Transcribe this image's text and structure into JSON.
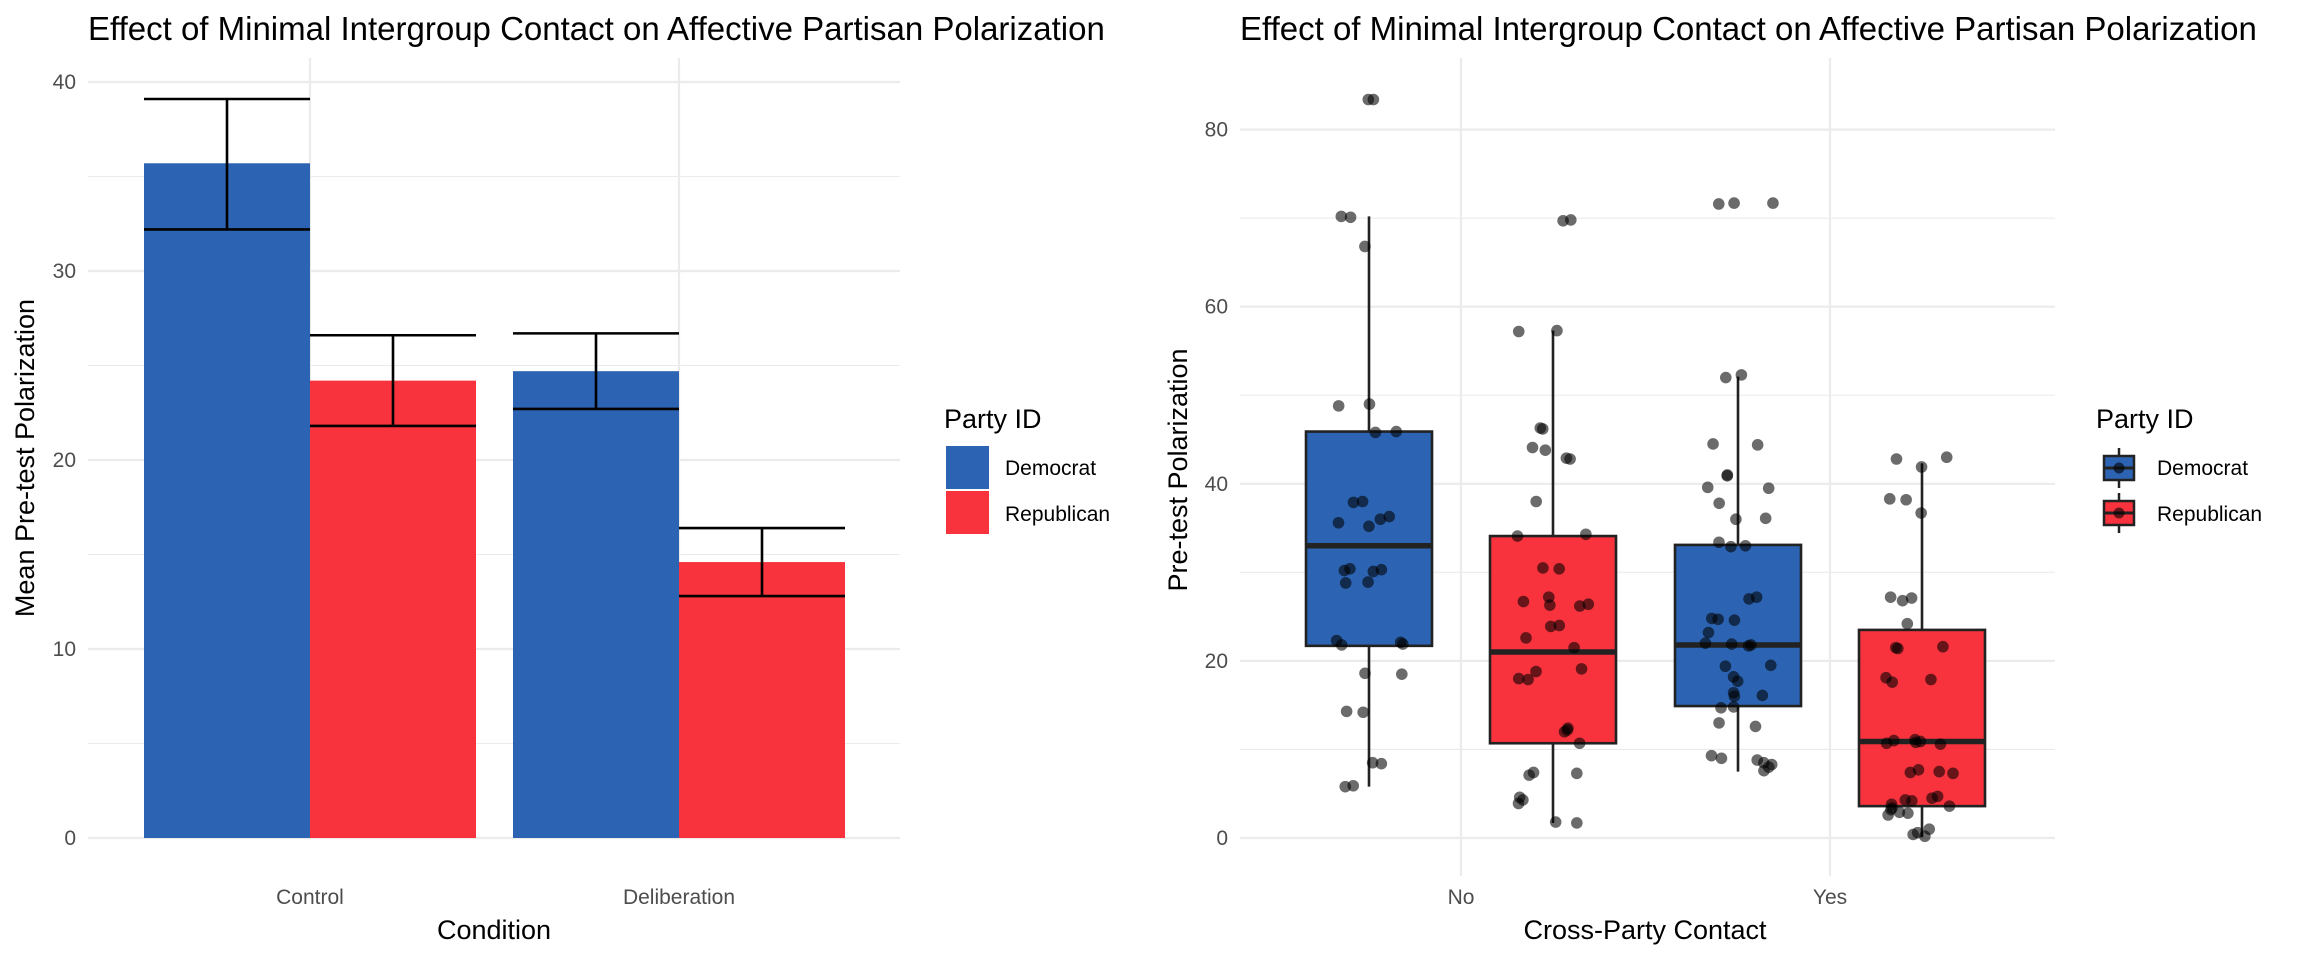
{
  "colors": {
    "democrat": "#2C64B3",
    "republican": "#F8333E"
  },
  "chart_data": [
    {
      "type": "bar",
      "title": "Effect of Minimal Intergroup Contact on Affective Partisan Polarization",
      "xlabel": "Condition",
      "ylabel": "Mean Pre-test Polarization",
      "categories": [
        "Control",
        "Deliberation"
      ],
      "ylim": [
        0,
        41
      ],
      "yticks": [
        0,
        10,
        20,
        30,
        40
      ],
      "ytick_labels": [
        "0",
        "10",
        "20",
        "30",
        "40"
      ],
      "legend": {
        "title": "Party ID",
        "position": "right"
      },
      "series": [
        {
          "name": "Democrat",
          "values": [
            35.7,
            24.7
          ],
          "err_low": [
            32.2,
            22.7
          ],
          "err_high": [
            39.1,
            26.7
          ]
        },
        {
          "name": "Republican",
          "values": [
            24.2,
            14.6
          ],
          "err_low": [
            21.8,
            12.8
          ],
          "err_high": [
            26.6,
            16.4
          ]
        }
      ]
    },
    {
      "type": "box",
      "title": "Effect of Minimal Intergroup Contact on Affective Partisan Polarization",
      "xlabel": "Cross-Party Contact",
      "ylabel": "Pre-test Polarization",
      "categories": [
        "No",
        "Yes"
      ],
      "ylim": [
        -1,
        87
      ],
      "yticks": [
        0,
        20,
        40,
        60,
        80
      ],
      "ytick_labels": [
        "0",
        "20",
        "40",
        "60",
        "80"
      ],
      "legend": {
        "title": "Party ID",
        "position": "right"
      },
      "series": [
        {
          "name": "Democrat",
          "boxes": [
            {
              "category": "No",
              "min": 5.8,
              "q1": 21.7,
              "median": 33.0,
              "q3": 45.9,
              "max": 70.2,
              "points": [
                83.4,
                83.4,
                70.2,
                70.1,
                66.8,
                49.0,
                48.8,
                45.9,
                45.8,
                38.0,
                37.9,
                36.3,
                36.0,
                35.6,
                35.2,
                30.4,
                30.3,
                30.2,
                30.1,
                28.9,
                28.8,
                22.3,
                22.1,
                21.9,
                21.8,
                18.6,
                18.5,
                14.3,
                14.2,
                8.5,
                8.4,
                5.9,
                5.8
              ]
            },
            {
              "category": "Yes",
              "min": 7.5,
              "q1": 14.9,
              "median": 21.8,
              "q3": 33.1,
              "max": 52.1,
              "points": [
                71.7,
                71.7,
                71.6,
                52.3,
                52.0,
                44.5,
                44.4,
                41.0,
                40.9,
                39.6,
                39.5,
                37.8,
                36.1,
                36.0,
                33.4,
                33.0,
                32.9,
                27.2,
                27.0,
                24.8,
                24.7,
                24.6,
                23.2,
                22.0,
                21.9,
                21.8,
                21.7,
                19.5,
                19.4,
                18.2,
                17.7,
                16.4,
                16.1,
                16.0,
                14.8,
                14.7,
                13.0,
                12.6,
                9.3,
                9.0,
                8.8,
                8.5,
                8.3,
                8.0,
                7.6
              ]
            }
          ]
        },
        {
          "name": "Republican",
          "boxes": [
            {
              "category": "No",
              "min": 1.7,
              "q1": 10.7,
              "median": 21.0,
              "q3": 34.1,
              "max": 57.3,
              "points": [
                69.8,
                69.7,
                57.3,
                57.2,
                46.3,
                46.2,
                44.1,
                43.8,
                42.9,
                42.8,
                38.0,
                34.3,
                34.1,
                30.5,
                30.4,
                27.2,
                26.7,
                26.4,
                26.3,
                26.2,
                24.0,
                23.9,
                22.6,
                21.5,
                19.1,
                18.8,
                18.0,
                17.9,
                12.4,
                12.2,
                12.0,
                10.7,
                7.4,
                7.3,
                7.1,
                4.6,
                4.3,
                3.9,
                1.8,
                1.7
              ]
            },
            {
              "category": "Yes",
              "min": 0.1,
              "q1": 3.6,
              "median": 10.9,
              "q3": 23.5,
              "max": 42.3,
              "points": [
                43.0,
                42.8,
                41.9,
                38.3,
                38.2,
                36.7,
                27.2,
                27.1,
                26.8,
                24.2,
                21.6,
                21.5,
                21.4,
                18.1,
                17.9,
                17.6,
                11.1,
                11.0,
                10.9,
                10.8,
                10.7,
                10.6,
                7.7,
                7.5,
                7.4,
                7.3,
                4.7,
                4.5,
                4.3,
                4.2,
                3.8,
                3.6,
                3.4,
                3.2,
                2.9,
                2.8,
                2.6,
                1.0,
                0.6,
                0.4,
                0.2
              ]
            }
          ]
        }
      ]
    }
  ]
}
